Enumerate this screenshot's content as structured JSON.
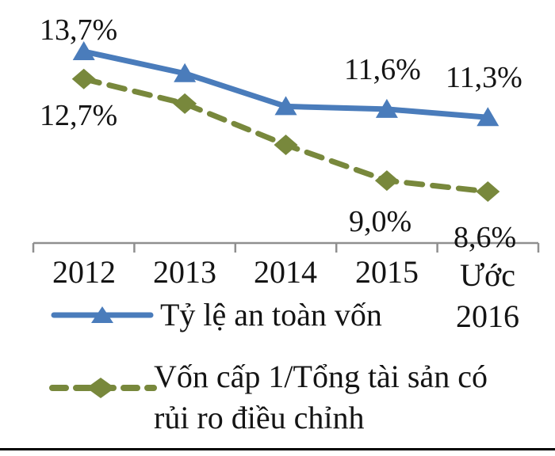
{
  "chart_data": {
    "type": "line",
    "title": "",
    "xlabel": "",
    "ylabel": "",
    "grid": false,
    "legend_position": "bottom-left",
    "axis_color": "#8f8f8f",
    "ylim": [
      8.0,
      14.5
    ],
    "categories": [
      "2012",
      "2013",
      "2014",
      "2015",
      "Ước 2016"
    ],
    "series": [
      {
        "name": "Tỷ lệ an toàn vốn",
        "color": "#4a7cbb",
        "marker": "triangle",
        "line_style": "solid",
        "values": [
          13.7,
          12.9,
          11.7,
          11.6,
          11.3
        ],
        "point_labels": [
          "13,7%",
          "",
          "",
          "11,6%",
          "11,3%"
        ]
      },
      {
        "name": "Vốn cấp 1/Tổng tài sản có rủi ro điều chỉnh",
        "color": "#78883c",
        "marker": "diamond",
        "line_style": "dashed",
        "values": [
          12.7,
          11.8,
          10.3,
          9.0,
          8.6
        ],
        "point_labels": [
          "12,7%",
          "",
          "",
          "9,0%",
          "8,6%"
        ]
      }
    ]
  },
  "legend": {
    "items": [
      {
        "label": "Tỷ lệ an toàn vốn"
      },
      {
        "label_line1": "Vốn cấp 1/Tổng tài sản có",
        "label_line2": "rủi ro điều chỉnh"
      }
    ]
  }
}
